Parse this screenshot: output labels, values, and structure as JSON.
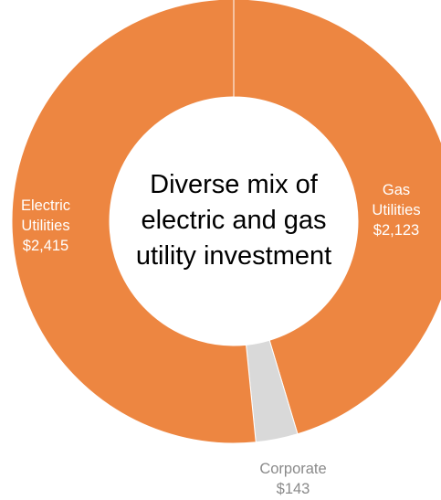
{
  "chart_data": {
    "type": "pie",
    "style": "donut",
    "center_text": [
      "Diverse mix of",
      "electric and gas",
      "utility investment"
    ],
    "slices": [
      {
        "label": [
          "Gas",
          "Utilities"
        ],
        "value_label": "$2,123",
        "value": 2123,
        "color": "#ED8641",
        "label_color": "#ffffff"
      },
      {
        "label": [
          "Corporate"
        ],
        "value_label": "$143",
        "value": 143,
        "color": "#D9D9D9",
        "label_color": "#8A8A8A"
      },
      {
        "label": [
          "Electric",
          "Utilities"
        ],
        "value_label": "$2,415",
        "value": 2415,
        "color": "#ED8641",
        "label_color": "#ffffff"
      }
    ],
    "start": "12 o'clock",
    "direction": "clockwise",
    "separator_color": "#ffffff"
  }
}
